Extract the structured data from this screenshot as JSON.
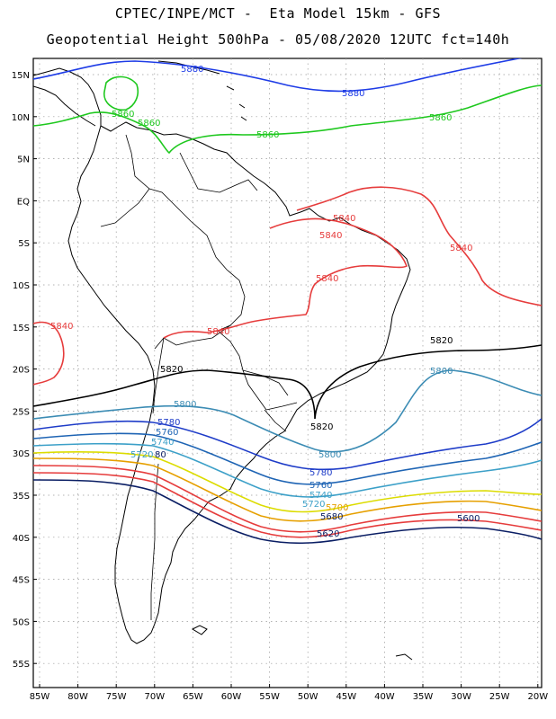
{
  "title_line1": "CPTEC/INPE/MCT -  Eta Model 15km - GFS",
  "title_line2": "Geopotential Height 500hPa - 05/08/2020 12UTC fct=140h",
  "lat_ticks": [
    "15N",
    "10N",
    "5N",
    "EQ",
    "5S",
    "10S",
    "15S",
    "20S",
    "25S",
    "30S",
    "35S",
    "40S",
    "45S",
    "50S",
    "55S"
  ],
  "lon_ticks": [
    "85W",
    "80W",
    "75W",
    "70W",
    "65W",
    "60W",
    "55W",
    "50W",
    "45W",
    "40W",
    "35W",
    "30W",
    "25W",
    "20W"
  ],
  "colors": {
    "c5880": "#1e3ce6",
    "c5860": "#1ec81e",
    "c5840": "#e63c3c",
    "c5820": "#000000",
    "c5800": "#3c8cb4",
    "c5780": "#1e3cc8",
    "c5760": "#1e64b4",
    "c5740": "#3ca0c8",
    "c5720": "#dcdc00",
    "c5700": "#e6a000",
    "c5680": "#e63c3c",
    "c5600": "#0a1e64"
  },
  "contour_labels": {
    "l5880a": "5880",
    "l5880b": "5880",
    "l5860a": "5860",
    "l5860b": "5860",
    "l5860c": "5860",
    "l5860d": "5860",
    "l5840a": "5840",
    "l5840b": "5840",
    "l5840c": "5840",
    "l5840d": "5840",
    "l5840e": "5840",
    "l5840f": "5840",
    "l5820a": "5820",
    "l5820b": "5820",
    "l5820c": "5820",
    "l5800a": "5800",
    "l5800b": "5800",
    "l5800c": "5800",
    "l5780a": "5780",
    "l5780b": "5780",
    "l5760a": "5760",
    "l5760b": "5760",
    "l5740a": "5740",
    "l5740b": "5740",
    "l5720a": "5720",
    "l5720b": "5720",
    "l5780c": "80",
    "l5700a": "5700",
    "l5680a": "5680",
    "l5620a": "5620",
    "l5600a": "5600"
  }
}
